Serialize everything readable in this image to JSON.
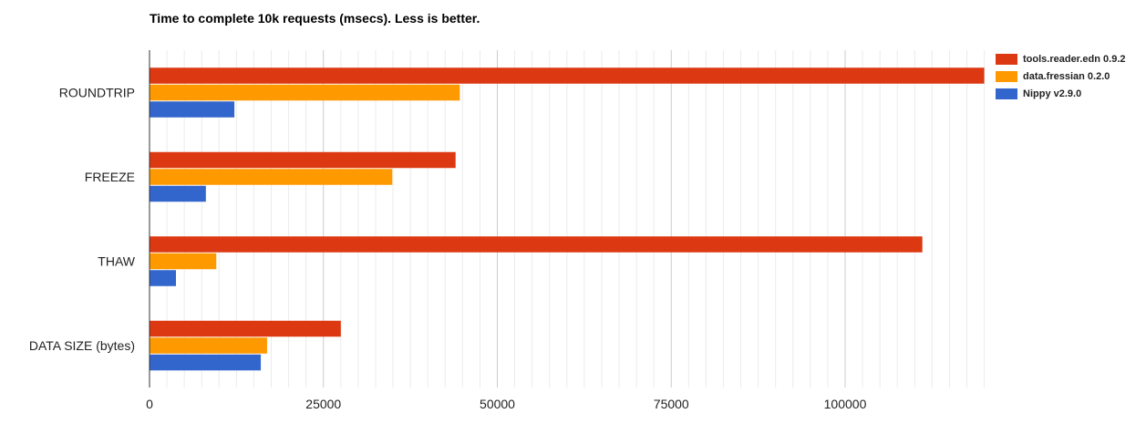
{
  "chart_data": {
    "type": "bar",
    "orientation": "horizontal",
    "title": "Time to complete 10k requests (msecs). Less is better.",
    "categories": [
      "ROUNDTRIP",
      "FREEZE",
      "THAW",
      "DATA SIZE (bytes)"
    ],
    "series": [
      {
        "name": "tools.reader.edn 0.9.2",
        "color": "#dc3912",
        "values": [
          120000,
          44000,
          111100,
          27500
        ]
      },
      {
        "name": "data.fressian 0.2.0",
        "color": "#ff9900",
        "values": [
          44600,
          34900,
          9600,
          16900
        ]
      },
      {
        "name": "Nippy v2.9.0",
        "color": "#3366cc",
        "values": [
          12200,
          8100,
          3800,
          16000
        ]
      }
    ],
    "xlim": [
      0,
      120000
    ],
    "xticks": [
      "0",
      "25000",
      "50000",
      "75000",
      "100000"
    ],
    "xtick_values": [
      0,
      25000,
      50000,
      75000,
      100000
    ],
    "minor_grid_step": 2500,
    "grid": true,
    "legend": "top-right"
  }
}
